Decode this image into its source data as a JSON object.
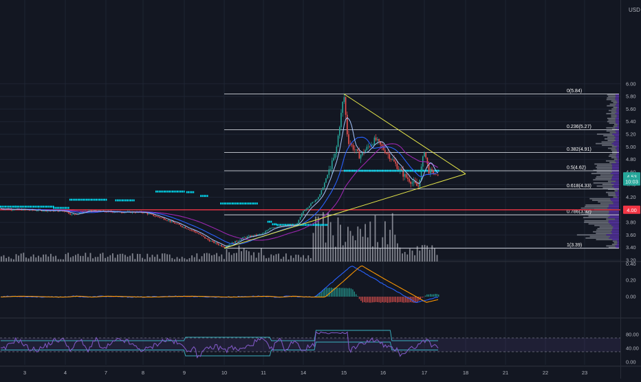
{
  "currency_label": "USD",
  "colors": {
    "background": "#131722",
    "grid": "#1e2433",
    "candle_up": "#26a69a",
    "candle_down": "#ef5350",
    "fib": "#d1d4dc",
    "triangle": "#e8e84a",
    "support": "#f23645",
    "ema_blue": "#2962ff",
    "ema_light": "#a8c8ff",
    "ma_purple": "#9c27b0",
    "dots": "#00e5ff",
    "volume": "#9598a1",
    "macd": "#2962ff",
    "signal": "#ff9800",
    "rsi": "#7e57c2",
    "rsi_band": "#3bb3c3",
    "price_badge": "#26a69a",
    "level_badge": "#f23645"
  },
  "chart_data": [
    {
      "type": "candlestick",
      "title": "",
      "x_ticks": [
        "3",
        "4",
        "7",
        "8",
        "9",
        "10",
        "11",
        "14",
        "15",
        "16",
        "17",
        "18",
        "21",
        "22",
        "23"
      ],
      "y_ticks": [
        "6.00",
        "5.80",
        "5.60",
        "5.40",
        "5.20",
        "5.00",
        "4.80",
        "4.60",
        "4.40",
        "4.20",
        "4.00",
        "3.80",
        "3.60",
        "3.40",
        "3.20"
      ],
      "ylim": [
        3.2,
        6.0
      ],
      "close_path": [
        {
          "day": 2.0,
          "price": 4.02
        },
        {
          "day": 3.0,
          "price": 4.0
        },
        {
          "day": 4.0,
          "price": 3.98
        },
        {
          "day": 4.5,
          "price": 3.92
        },
        {
          "day": 5.5,
          "price": 3.98
        },
        {
          "day": 7.0,
          "price": 3.97
        },
        {
          "day": 8.0,
          "price": 3.96
        },
        {
          "day": 8.5,
          "price": 3.86
        },
        {
          "day": 9.3,
          "price": 3.64
        },
        {
          "day": 9.6,
          "price": 3.52
        },
        {
          "day": 10.0,
          "price": 3.41
        },
        {
          "day": 10.5,
          "price": 3.56
        },
        {
          "day": 11.0,
          "price": 3.62
        },
        {
          "day": 11.5,
          "price": 3.72
        },
        {
          "day": 13.5,
          "price": 3.76
        },
        {
          "day": 14.0,
          "price": 3.98
        },
        {
          "day": 14.4,
          "price": 4.22
        },
        {
          "day": 14.8,
          "price": 4.9
        },
        {
          "day": 15.0,
          "price": 5.84
        },
        {
          "day": 15.1,
          "price": 5.1
        },
        {
          "day": 15.4,
          "price": 4.85
        },
        {
          "day": 15.8,
          "price": 5.12
        },
        {
          "day": 16.1,
          "price": 4.9
        },
        {
          "day": 16.5,
          "price": 4.55
        },
        {
          "day": 16.85,
          "price": 4.36
        },
        {
          "day": 17.0,
          "price": 4.95
        },
        {
          "day": 17.1,
          "price": 4.62
        },
        {
          "day": 17.35,
          "price": 4.53
        }
      ],
      "fibonacci": [
        {
          "level": "0",
          "price": 5.84,
          "label": "0(5.84)"
        },
        {
          "level": "0.236",
          "price": 5.27,
          "label": "0.236(5.27)"
        },
        {
          "level": "0.382",
          "price": 4.91,
          "label": "0.382(4.91)"
        },
        {
          "level": "0.5",
          "price": 4.62,
          "label": "0.5(4.62)"
        },
        {
          "level": "0.618",
          "price": 4.33,
          "label": "0.618(4.33)"
        },
        {
          "level": "0.786",
          "price": 3.92,
          "label": "0.786(3.92)"
        },
        {
          "level": "1",
          "price": 3.39,
          "label": "1(3.39)"
        }
      ],
      "triangle": {
        "upper": [
          {
            "day": 15.0,
            "price": 5.84
          },
          {
            "day": 18.0,
            "price": 4.57
          }
        ],
        "lower": [
          {
            "day": 10.0,
            "price": 3.39
          },
          {
            "day": 18.0,
            "price": 4.57
          }
        ]
      },
      "support_level": 4.0,
      "price_badges": [
        {
          "label": "4.53",
          "price": 4.53,
          "kind": "current"
        },
        {
          "label": "10:03",
          "price": 4.45,
          "kind": "countdown"
        },
        {
          "label": "4.00",
          "price": 4.0,
          "kind": "level"
        }
      ]
    },
    {
      "type": "macd",
      "y_ticks": [
        "0.40",
        "0.20",
        "0.00"
      ],
      "ylim": [
        -0.1,
        0.44
      ]
    },
    {
      "type": "rsi",
      "y_ticks": [
        "80.00",
        "40.00",
        "0.00"
      ],
      "ylim": [
        0,
        100
      ]
    }
  ]
}
